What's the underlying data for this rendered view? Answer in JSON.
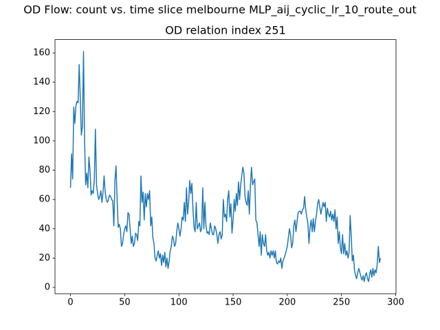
{
  "chart_data": {
    "type": "line",
    "suptitle": "OD Flow: count vs. time slice melbourne MLP_aij_cyclic_lr_10_route_out",
    "title": "OD relation index 251",
    "color": "#1f77b4",
    "xlim": [
      -14.3,
      300.3
    ],
    "xticks": [
      0,
      50,
      100,
      150,
      200,
      250,
      300
    ],
    "ylim": [
      -4.3,
      169.1
    ],
    "yticks": [
      0,
      20,
      40,
      60,
      80,
      100,
      120,
      140,
      160
    ],
    "grid": false,
    "x": [
      0,
      1,
      2,
      3,
      4,
      5,
      6,
      7,
      8,
      9,
      10,
      11,
      12,
      13,
      14,
      15,
      16,
      17,
      18,
      19,
      20,
      21,
      22,
      23,
      24,
      25,
      26,
      27,
      28,
      29,
      30,
      31,
      32,
      33,
      34,
      35,
      36,
      37,
      38,
      39,
      40,
      41,
      42,
      43,
      44,
      45,
      46,
      47,
      48,
      49,
      50,
      51,
      52,
      53,
      54,
      55,
      56,
      57,
      58,
      59,
      60,
      61,
      62,
      63,
      64,
      65,
      66,
      67,
      68,
      69,
      70,
      71,
      72,
      73,
      74,
      75,
      76,
      77,
      78,
      79,
      80,
      81,
      82,
      83,
      84,
      85,
      86,
      87,
      88,
      89,
      90,
      91,
      92,
      93,
      94,
      95,
      96,
      97,
      98,
      99,
      100,
      101,
      102,
      103,
      104,
      105,
      106,
      107,
      108,
      109,
      110,
      111,
      112,
      113,
      114,
      115,
      116,
      117,
      118,
      119,
      120,
      121,
      122,
      123,
      124,
      125,
      126,
      127,
      128,
      129,
      130,
      131,
      132,
      133,
      134,
      135,
      136,
      137,
      138,
      139,
      140,
      141,
      142,
      143,
      144,
      145,
      146,
      147,
      148,
      149,
      150,
      151,
      152,
      153,
      154,
      155,
      156,
      157,
      158,
      159,
      160,
      161,
      162,
      163,
      164,
      165,
      166,
      167,
      168,
      169,
      170,
      171,
      172,
      173,
      174,
      175,
      176,
      177,
      178,
      179,
      180,
      181,
      182,
      183,
      184,
      185,
      186,
      187,
      188,
      189,
      190,
      191,
      192,
      193,
      194,
      195,
      196,
      197,
      198,
      199,
      200,
      201,
      202,
      203,
      204,
      205,
      206,
      207,
      208,
      209,
      210,
      211,
      212,
      213,
      214,
      215,
      216,
      217,
      218,
      219,
      220,
      221,
      222,
      223,
      224,
      225,
      226,
      227,
      228,
      229,
      230,
      231,
      232,
      233,
      234,
      235,
      236,
      237,
      238,
      239,
      240,
      241,
      242,
      243,
      244,
      245,
      246,
      247,
      248,
      249,
      250,
      251,
      252,
      253,
      254,
      255,
      256,
      257,
      258,
      259,
      260,
      261,
      262,
      263,
      264,
      265,
      266,
      267,
      268,
      269,
      270,
      271,
      272,
      273,
      274,
      275,
      276,
      277,
      278,
      279,
      280,
      281,
      282,
      283,
      284,
      285,
      286
    ],
    "values": [
      68,
      91,
      74,
      123,
      112,
      124,
      127,
      126,
      152,
      130,
      104,
      110,
      161,
      100,
      70,
      78,
      68,
      89,
      80,
      63,
      66,
      64,
      74,
      108,
      70,
      64,
      60,
      62,
      66,
      58,
      65,
      76,
      65,
      60,
      58,
      60,
      63,
      62,
      60,
      59,
      42,
      73,
      83,
      60,
      41,
      43,
      40,
      28,
      30,
      36,
      40,
      42,
      38,
      51,
      50,
      40,
      30,
      35,
      28,
      30,
      37,
      36,
      32,
      45,
      42,
      76,
      58,
      65,
      46,
      64,
      55,
      64,
      60,
      66,
      42,
      48,
      34,
      30,
      20,
      18,
      22,
      25,
      20,
      23,
      15,
      22,
      17,
      24,
      14,
      20,
      13,
      18,
      25,
      28,
      35,
      33,
      28,
      30,
      38,
      44,
      40,
      35,
      40,
      48,
      46,
      58,
      45,
      68,
      50,
      58,
      73,
      64,
      71,
      53,
      41,
      38,
      58,
      40,
      42,
      44,
      38,
      40,
      68,
      40,
      58,
      42,
      37,
      38,
      36,
      44,
      40,
      36,
      36,
      42,
      40,
      36,
      30,
      36,
      38,
      33,
      36,
      60,
      48,
      50,
      45,
      60,
      66,
      48,
      57,
      37,
      46,
      60,
      52,
      64,
      56,
      72,
      60,
      70,
      76,
      82,
      78,
      62,
      58,
      56,
      66,
      50,
      70,
      82,
      70,
      72,
      74,
      46,
      44,
      36,
      28,
      38,
      22,
      36,
      30,
      28,
      36,
      25,
      22,
      24,
      20,
      25,
      22,
      25,
      20,
      25,
      17,
      16,
      18,
      17,
      20,
      13,
      18,
      20,
      22,
      25,
      28,
      34,
      40,
      36,
      27,
      30,
      42,
      46,
      38,
      45,
      51,
      52,
      52,
      50,
      53,
      54,
      62,
      53,
      48,
      44,
      30,
      41,
      46,
      38,
      47,
      38,
      45,
      50,
      57,
      60,
      55,
      50,
      54,
      58,
      55,
      58,
      45,
      54,
      50,
      48,
      52,
      46,
      50,
      45,
      53,
      40,
      48,
      30,
      38,
      27,
      23,
      36,
      23,
      30,
      22,
      25,
      20,
      24,
      49,
      35,
      18,
      22,
      12,
      8,
      6,
      10,
      13,
      10,
      7,
      5,
      8,
      4,
      8,
      10,
      6,
      4,
      9,
      12,
      7,
      13,
      8,
      12,
      10,
      16,
      28,
      17,
      20
    ]
  }
}
